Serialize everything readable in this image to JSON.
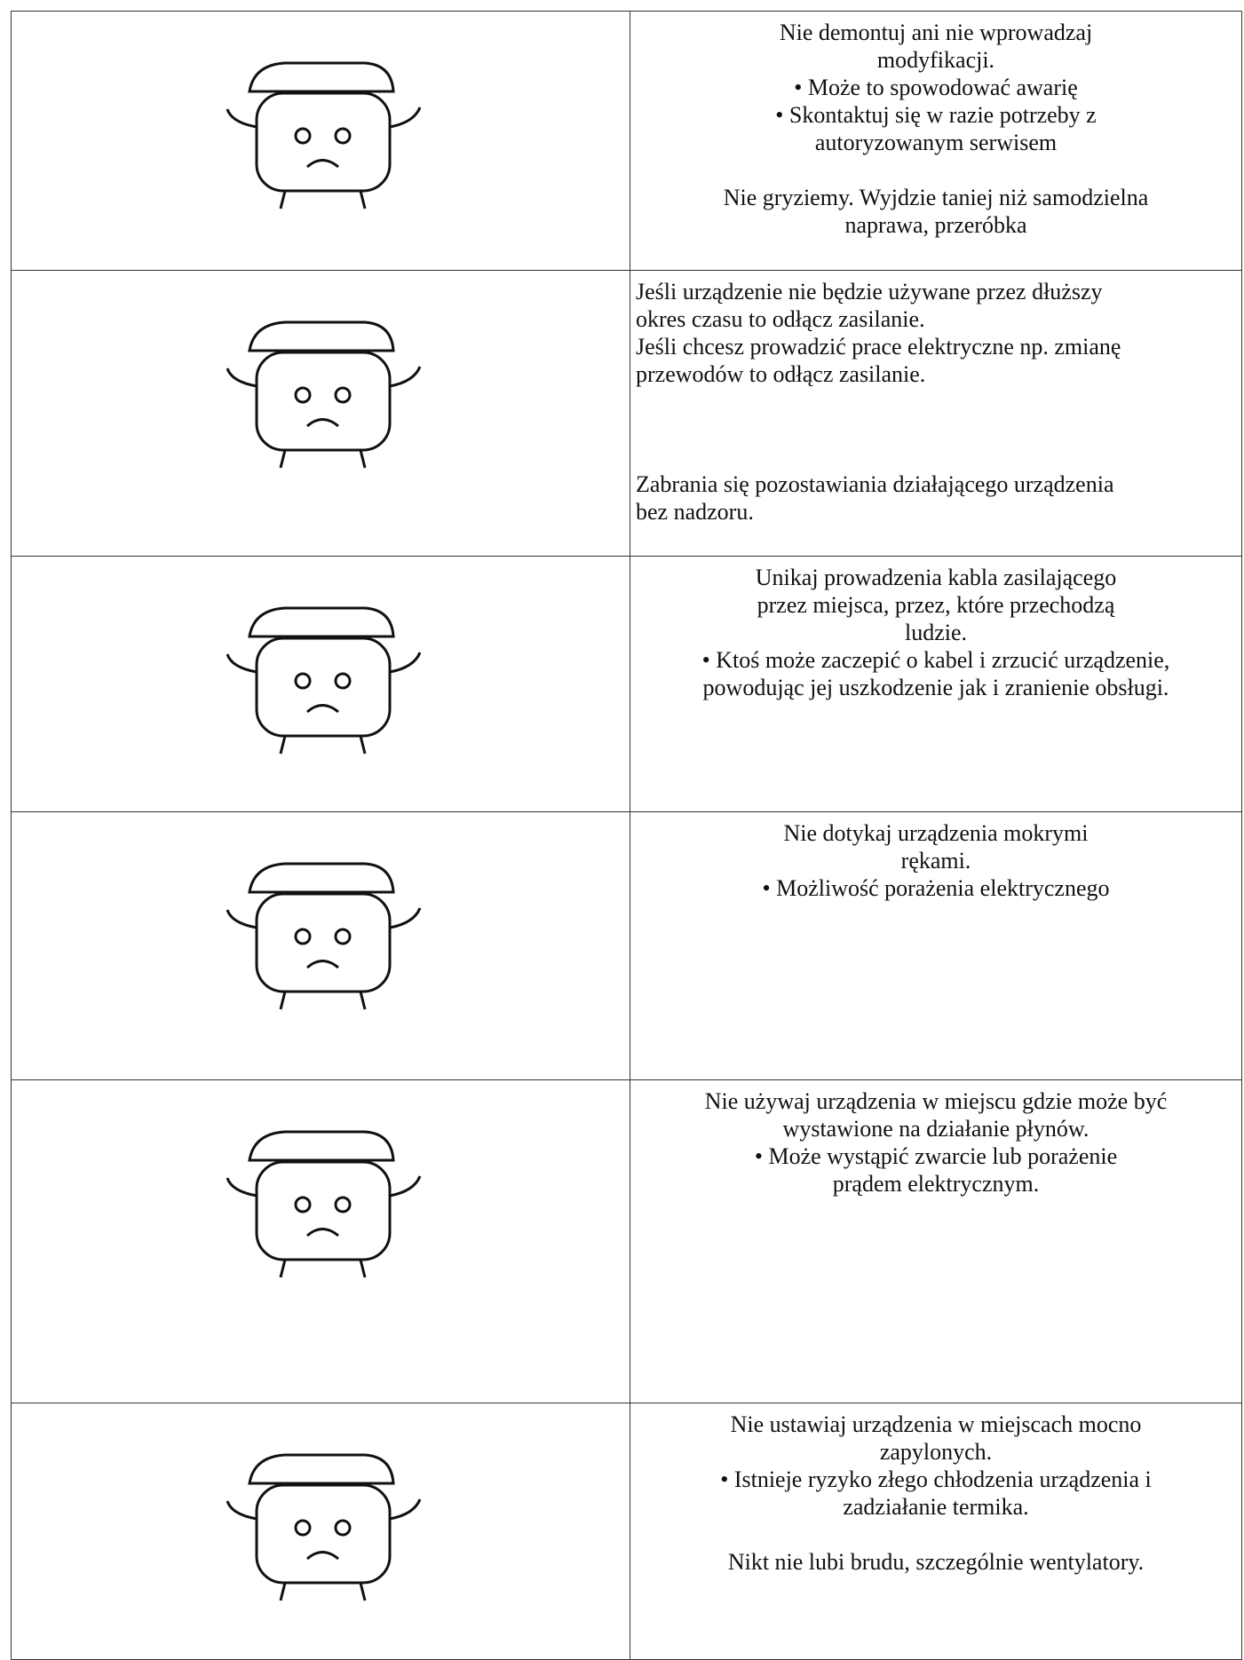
{
  "table": {
    "rows": [
      {
        "paragraphs": [
          [
            "Nie demontuj ani nie wprowadzaj",
            "modyfikacji.",
            "• Może to spowodować awarię",
            "• Skontaktuj się w razie potrzeby z",
            "autoryzowanym serwisem"
          ],
          [
            "Nie gryziemy. Wyjdzie taniej niż samodzielna",
            "naprawa, przeróbka"
          ]
        ],
        "align": "center"
      },
      {
        "paragraphs": [
          [
            "Jeśli urządzenie  nie będzie używane przez dłuższy",
            "okres czasu to odłącz zasilanie.",
            "Jeśli chcesz prowadzić prace elektryczne np. zmianę",
            "przewodów  to odłącz zasilanie."
          ],
          [
            "Zabrania się pozostawiania działającego urządzenia",
            "bez nadzoru."
          ]
        ],
        "align": "left"
      },
      {
        "paragraphs": [
          [
            "Unikaj prowadzenia kabla zasilającego",
            "przez miejsca, przez, które przechodzą",
            "ludzie.",
            "• Ktoś może zaczepić o kabel i zrzucić urządzenie,",
            "powodując jej uszkodzenie jak i zranienie obsługi."
          ]
        ],
        "align": "center"
      },
      {
        "paragraphs": [
          [
            "Nie dotykaj urządzenia mokrymi",
            "rękami.",
            "• Możliwość porażenia elektrycznego"
          ]
        ],
        "align": "center"
      },
      {
        "paragraphs": [
          [
            "Nie używaj urządzenia w miejscu gdzie może być",
            "wystawione na działanie płynów.",
            "• Może wystąpić zwarcie lub porażenie",
            "prądem elektrycznym."
          ]
        ],
        "align": "center"
      },
      {
        "paragraphs": [
          [
            "Nie ustawiaj urządzenia w miejscach mocno",
            "zapylonych.",
            "• Istnieje ryzyko złego chłodzenia urządzenia i",
            "zadziałanie termika."
          ],
          [
            "Nikt nie lubi brudu, szczególnie wentylatory."
          ]
        ],
        "align": "center"
      }
    ]
  }
}
